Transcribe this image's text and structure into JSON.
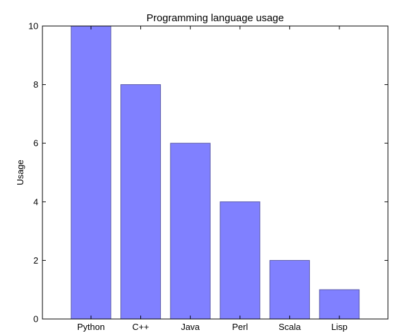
{
  "chart_data": {
    "type": "bar",
    "title": "Programming language usage",
    "xlabel": "",
    "ylabel": "Usage",
    "categories": [
      "Python",
      "C++",
      "Java",
      "Perl",
      "Scala",
      "Lisp"
    ],
    "values": [
      10,
      8,
      6,
      4,
      2,
      1
    ],
    "ylim": [
      0,
      10
    ],
    "yticks": [
      0,
      2,
      4,
      6,
      8,
      10
    ],
    "grid": false,
    "bar_color": "#8080ff",
    "bar_edge_color": "#5a5aa8"
  }
}
